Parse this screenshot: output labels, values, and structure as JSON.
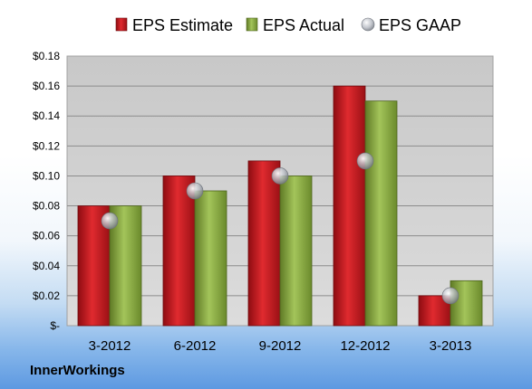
{
  "footer": {
    "company": "InnerWorkings"
  },
  "colors": {
    "estimate": "#c0141b",
    "actual": "#86a83a",
    "gaap": "#b8bcc4"
  },
  "chart_data": {
    "type": "bar",
    "title": "",
    "xlabel": "",
    "ylabel": "",
    "categories": [
      "3-2012",
      "6-2012",
      "9-2012",
      "12-2012",
      "3-2013"
    ],
    "series": [
      {
        "name": "EPS Estimate",
        "type": "bar",
        "values": [
          0.08,
          0.1,
          0.11,
          0.16,
          0.02
        ]
      },
      {
        "name": "EPS Actual",
        "type": "bar",
        "values": [
          0.08,
          0.09,
          0.1,
          0.15,
          0.03
        ]
      },
      {
        "name": "EPS GAAP",
        "type": "scatter",
        "values": [
          0.07,
          0.09,
          0.1,
          0.11,
          0.02
        ]
      }
    ],
    "ylim": [
      0,
      0.18
    ],
    "ytick_labels": [
      "$-",
      "$0.02",
      "$0.04",
      "$0.06",
      "$0.08",
      "$0.10",
      "$0.12",
      "$0.14",
      "$0.16",
      "$0.18"
    ],
    "legend": {
      "position": "top"
    },
    "grid": true
  }
}
